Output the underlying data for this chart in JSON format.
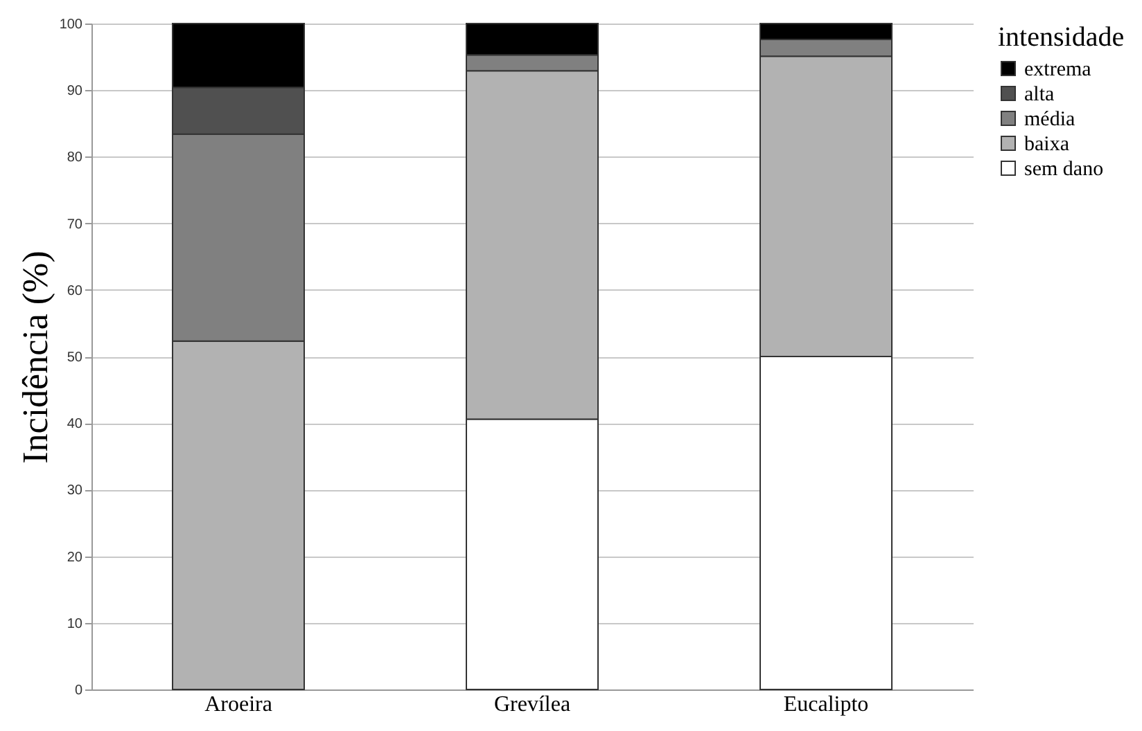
{
  "chart_data": {
    "type": "bar",
    "stacked": true,
    "ylabel": "Incidência  (%)",
    "legend_title": "intensidade",
    "legend": "right",
    "grid": "y",
    "categories": [
      "Aroeira",
      "Grevílea",
      "Eucalipto"
    ],
    "ylim": [
      0,
      100
    ],
    "yticks": [
      0,
      10,
      20,
      30,
      40,
      50,
      60,
      70,
      80,
      90,
      100
    ],
    "series": [
      {
        "name": "sem dano",
        "color": "#ffffff",
        "values": [
          0,
          40.6,
          50
        ]
      },
      {
        "name": "baixa",
        "color": "#b2b2b2",
        "values": [
          52.3,
          52.3,
          45.1
        ]
      },
      {
        "name": "média",
        "color": "#808080",
        "values": [
          31.1,
          2.4,
          2.5
        ]
      },
      {
        "name": "alta",
        "color": "#505050",
        "values": [
          7.0,
          0,
          0
        ]
      },
      {
        "name": "extrema",
        "color": "#000000",
        "values": [
          9.6,
          4.7,
          2.4
        ]
      }
    ]
  }
}
